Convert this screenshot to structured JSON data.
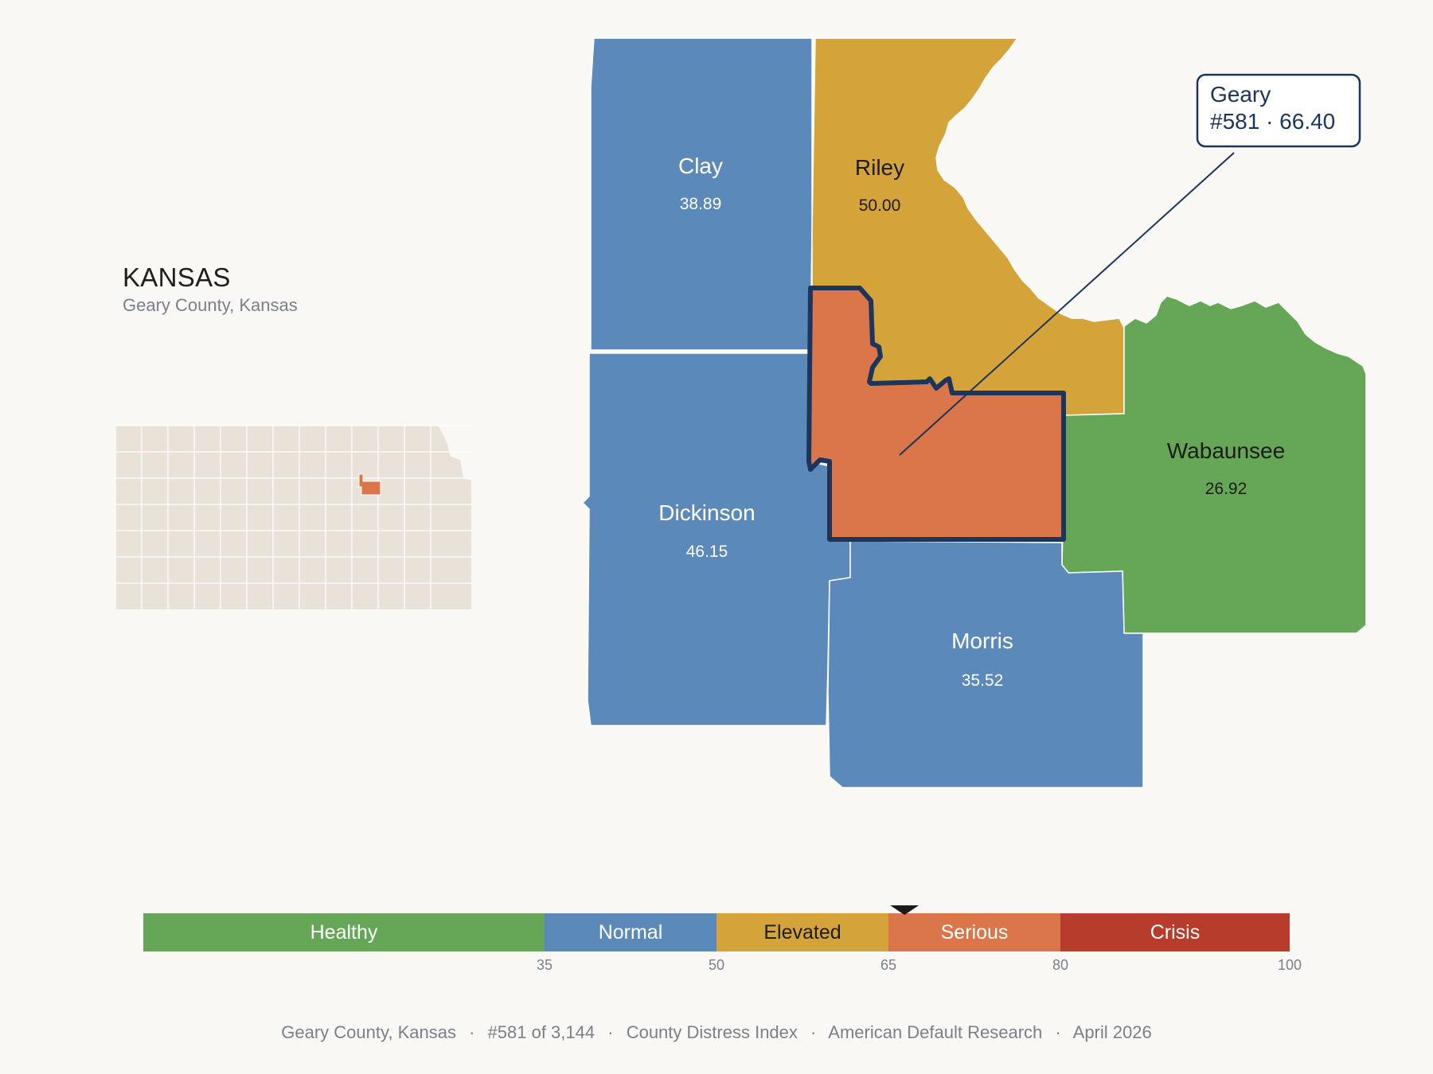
{
  "state": {
    "title": "KANSAS",
    "subtitle": "Geary County, Kansas"
  },
  "colors": {
    "healthy": "#66a657",
    "normal": "#5b89b9",
    "elevated": "#d4a43a",
    "serious": "#da764a",
    "crisis": "#b83c2b",
    "locator_fill": "#e8e2d8",
    "highlight_outline": "#1c355c",
    "background": "#f9f8f5"
  },
  "counties": [
    {
      "id": "clay",
      "name": "Clay",
      "value": "38.89",
      "category": "normal"
    },
    {
      "id": "riley",
      "name": "Riley",
      "value": "50.00",
      "category": "elevated"
    },
    {
      "id": "dickinson",
      "name": "Dickinson",
      "value": "46.15",
      "category": "normal"
    },
    {
      "id": "wabaunsee",
      "name": "Wabaunsee",
      "value": "26.92",
      "category": "healthy"
    },
    {
      "id": "morris",
      "name": "Morris",
      "value": "35.52",
      "category": "normal"
    },
    {
      "id": "geary",
      "name": "Geary",
      "value": "66.40",
      "category": "serious",
      "highlighted": true
    }
  ],
  "callout": {
    "line1": "Geary",
    "line2": "#581 · 66.40"
  },
  "legend": {
    "domain": [
      0,
      100
    ],
    "marker_value": 66.4,
    "bands": [
      {
        "label": "Healthy",
        "from": 0,
        "to": 35,
        "category": "healthy"
      },
      {
        "label": "Normal",
        "from": 35,
        "to": 50,
        "category": "normal"
      },
      {
        "label": "Elevated",
        "from": 50,
        "to": 65,
        "category": "elevated"
      },
      {
        "label": "Serious",
        "from": 65,
        "to": 80,
        "category": "serious"
      },
      {
        "label": "Crisis",
        "from": 80,
        "to": 100,
        "category": "crisis"
      }
    ],
    "ticks": [
      "35",
      "50",
      "65",
      "80",
      "100"
    ]
  },
  "footer": {
    "county": "Geary County, Kansas",
    "rank": "#581 of 3,144",
    "index": "County Distress Index",
    "source": "American Default Research",
    "date": "April 2026",
    "separator": "·"
  }
}
